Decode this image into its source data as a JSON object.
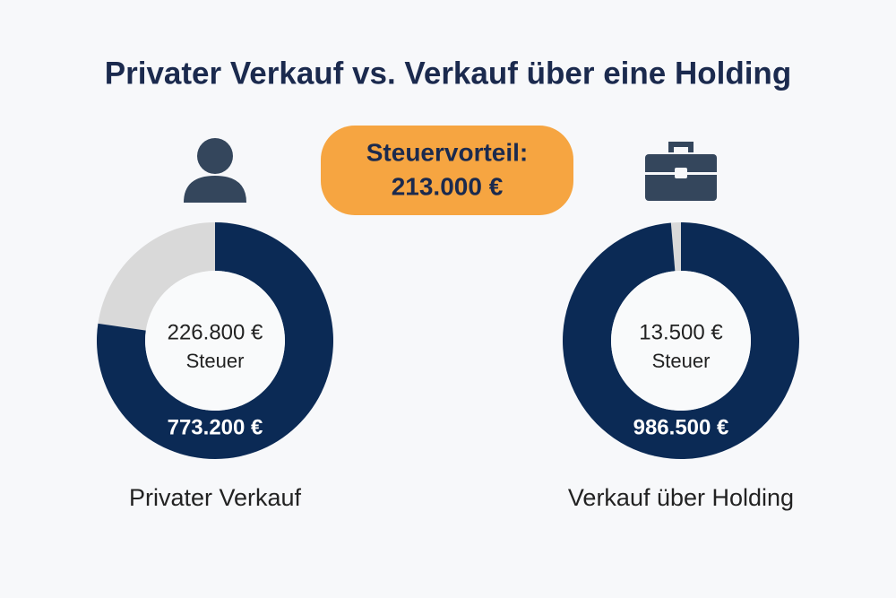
{
  "title": "Privater Verkauf vs. Verkauf über eine Holding",
  "badge": {
    "label": "Steuervorteil:",
    "value": "213.000 €"
  },
  "chart_data": [
    {
      "type": "donut",
      "title": "Privater Verkauf",
      "categories": [
        "Steuer",
        null
      ],
      "values": [
        226800,
        773200
      ],
      "value_labels": [
        "226.800 €",
        "773.200 €"
      ],
      "colors": [
        "#d9d9d9",
        "#0b2a55"
      ]
    },
    {
      "type": "donut",
      "title": "Verkauf über Holding",
      "categories": [
        "Steuer",
        null
      ],
      "values": [
        13500,
        986500
      ],
      "value_labels": [
        "13.500 €",
        "986.500 €"
      ],
      "colors": [
        "#d9d9d9",
        "#0b2a55"
      ]
    }
  ]
}
